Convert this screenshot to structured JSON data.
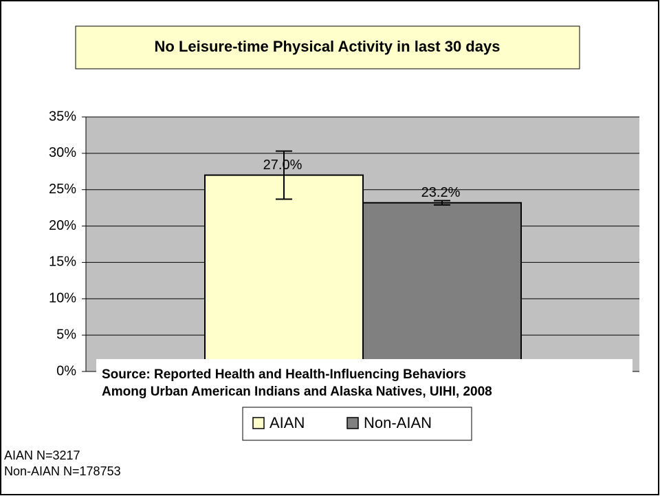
{
  "chart_data": {
    "type": "bar",
    "title": "No Leisure-time Physical Activity in last 30 days",
    "series": [
      {
        "name": "AIAN",
        "color": "#ffffcc",
        "values": [
          27.0
        ],
        "value_labels": [
          "27.0%"
        ],
        "errors": [
          3.3
        ]
      },
      {
        "name": "Non-AIAN",
        "color": "#808080",
        "values": [
          23.2
        ],
        "value_labels": [
          "23.2%"
        ],
        "errors": [
          0.3
        ]
      }
    ],
    "ylim": [
      0,
      35
    ],
    "yticks": [
      {
        "value": 0,
        "label": "0%"
      },
      {
        "value": 5,
        "label": "5%"
      },
      {
        "value": 10,
        "label": "10%"
      },
      {
        "value": 15,
        "label": "15%"
      },
      {
        "value": 20,
        "label": "20%"
      },
      {
        "value": 25,
        "label": "25%"
      },
      {
        "value": 30,
        "label": "30%"
      },
      {
        "value": 35,
        "label": "35%"
      }
    ],
    "grid": true,
    "plot_background": "#c0c0c0",
    "source": [
      "Source: Reported  Health and Health-Influencing Behaviors",
      "Among Urban American Indians and Alaska Natives, UIHI, 2008"
    ],
    "notes": [
      "AIAN N=3217",
      "Non-AIAN N=178753"
    ]
  }
}
